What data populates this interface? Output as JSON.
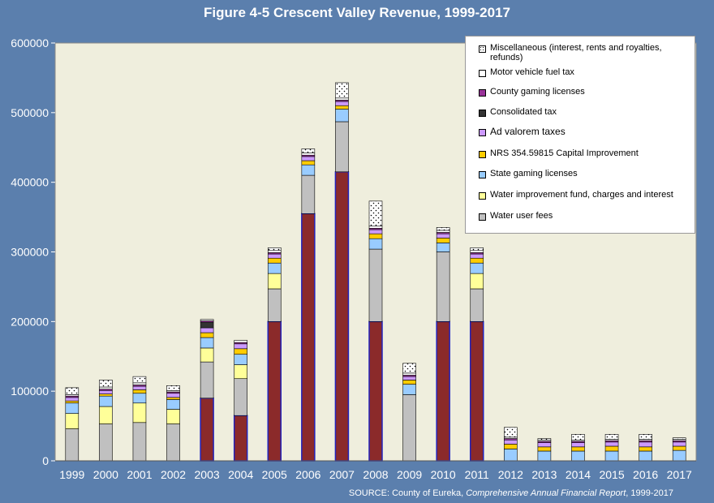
{
  "title": "Figure 4-5 Crescent Valley  Revenue, 1999-2017",
  "source": {
    "prefix": "SOURCE: County of Eureka, ",
    "italic": "Comprehensive Annual Financial Report",
    "suffix": ", 1999-2017"
  },
  "colors": {
    "background": "#5b7fad",
    "plot_area": "#efeedd",
    "bar_outline": "#2222bb",
    "water_user_fees": "#c0c0c0",
    "water_improvement": "#ffff99",
    "state_gaming": "#99ccff",
    "nrs_capital": "#ffcc00",
    "ad_valorem": "#cc99ff",
    "consolidated_tax": "#333333",
    "county_gaming": "#993399",
    "motor_vehicle_fuel": "#ffffff",
    "miscellaneous": "#ffffff",
    "base_dark_red": "#8b2a2a"
  },
  "chart_data": {
    "type": "bar",
    "stacked": true,
    "title": "Figure 4-5 Crescent Valley  Revenue, 1999-2017",
    "ylim": [
      0,
      600000
    ],
    "yticks": [
      "0",
      "100000",
      "200000",
      "300000",
      "400000",
      "500000",
      "600000"
    ],
    "ytick_values": [
      0,
      100000,
      200000,
      300000,
      400000,
      500000,
      600000
    ],
    "grid": false,
    "legend_position": "top-right",
    "categories": [
      "1999",
      "2000",
      "2001",
      "2002",
      "2003",
      "2004",
      "2005",
      "2006",
      "2007",
      "2008",
      "2009",
      "2010",
      "2011",
      "2012",
      "2013",
      "2014",
      "2015",
      "2016",
      "2017"
    ],
    "series": [
      {
        "key": "base",
        "color": "#8b2a2a",
        "values": [
          0,
          0,
          0,
          0,
          90000,
          65000,
          200000,
          355000,
          415000,
          200000,
          0,
          200000,
          200000,
          0,
          0,
          0,
          0,
          0,
          0
        ]
      },
      {
        "key": "water_user_fees",
        "name": "Water user fees",
        "color": "#c0c0c0",
        "values": [
          46000,
          53000,
          55000,
          53000,
          52000,
          53000,
          47000,
          55000,
          72000,
          104000,
          95000,
          100000,
          47000,
          0,
          0,
          0,
          0,
          0,
          0
        ]
      },
      {
        "key": "water_improvement",
        "name": "Water improvement fund, charges and interest",
        "color": "#ffff99",
        "values": [
          22000,
          25000,
          28000,
          21000,
          20000,
          20000,
          22000,
          0,
          0,
          0,
          0,
          0,
          22000,
          0,
          0,
          0,
          0,
          0,
          0
        ]
      },
      {
        "key": "state_gaming",
        "name": "State gaming licenses",
        "color": "#99ccff",
        "values": [
          15000,
          15000,
          14000,
          14000,
          15000,
          15000,
          15000,
          15000,
          18000,
          15000,
          15000,
          13000,
          15000,
          17000,
          14000,
          14000,
          14000,
          14000,
          15000
        ]
      },
      {
        "key": "nrs_capital",
        "name": "NRS 354.59815 Capital Improvement",
        "color": "#ffcc00",
        "values": [
          3000,
          3000,
          5000,
          3000,
          7000,
          8000,
          7000,
          6000,
          5000,
          7000,
          6000,
          7000,
          7000,
          7000,
          6000,
          6000,
          7000,
          6000,
          6000
        ]
      },
      {
        "key": "ad_valorem",
        "name": "Ad valorem taxes",
        "color": "#cc99ff",
        "values": [
          5000,
          5000,
          5000,
          6000,
          7000,
          7000,
          6000,
          6000,
          6000,
          6000,
          5000,
          6000,
          6000,
          6000,
          6000,
          6000,
          6000,
          7000,
          6000
        ]
      },
      {
        "key": "consolidated_tax",
        "name": "Consolidated tax",
        "color": "#333333",
        "values": [
          0,
          0,
          0,
          0,
          8000,
          0,
          0,
          0,
          0,
          0,
          0,
          0,
          0,
          0,
          0,
          0,
          0,
          0,
          0
        ]
      },
      {
        "key": "county_gaming",
        "name": "County gaming licenses",
        "color": "#993399",
        "values": [
          2000,
          2000,
          2000,
          2000,
          2000,
          2000,
          2000,
          2000,
          2000,
          2000,
          2000,
          2000,
          2000,
          2000,
          2000,
          2000,
          2000,
          2000,
          2000
        ]
      },
      {
        "key": "motor_vehicle_fuel",
        "name": "Motor vehicle fuel tax",
        "color": "#ffffff",
        "values": [
          2000,
          3000,
          3000,
          2000,
          2000,
          3000,
          3000,
          3000,
          3000,
          3000,
          3000,
          3000,
          3000,
          2000,
          2000,
          2000,
          2000,
          2000,
          2000
        ]
      },
      {
        "key": "miscellaneous",
        "name": "Miscellaneous (interest, rents and royalties, refunds)",
        "color": "#ffffff",
        "dotted": true,
        "values": [
          10000,
          10000,
          9000,
          7000,
          0,
          0,
          4000,
          6000,
          22000,
          36000,
          14000,
          4000,
          4000,
          14000,
          2000,
          8000,
          7000,
          7000,
          2000
        ]
      }
    ]
  },
  "legend": [
    {
      "label": "Miscellaneous (interest, rents and royalties, refunds)",
      "color": "#ffffff",
      "dotted": true
    },
    {
      "label": "Motor vehicle fuel tax",
      "color": "#ffffff",
      "dotted": false
    },
    {
      "label": "County gaming licenses",
      "color": "#993399",
      "dotted": false
    },
    {
      "label": "Consolidated tax",
      "color": "#333333",
      "dotted": false
    },
    {
      "label": "Ad valorem taxes",
      "color": "#cc99ff",
      "dotted": false
    },
    {
      "label": "NRS 354.59815 Capital Improvement",
      "color": "#ffcc00",
      "dotted": false
    },
    {
      "label": "State gaming licenses",
      "color": "#99ccff",
      "dotted": false
    },
    {
      "label": "Water improvement fund, charges and interest",
      "color": "#ffff99",
      "dotted": false
    },
    {
      "label": "Water user fees",
      "color": "#c0c0c0",
      "dotted": false
    }
  ]
}
